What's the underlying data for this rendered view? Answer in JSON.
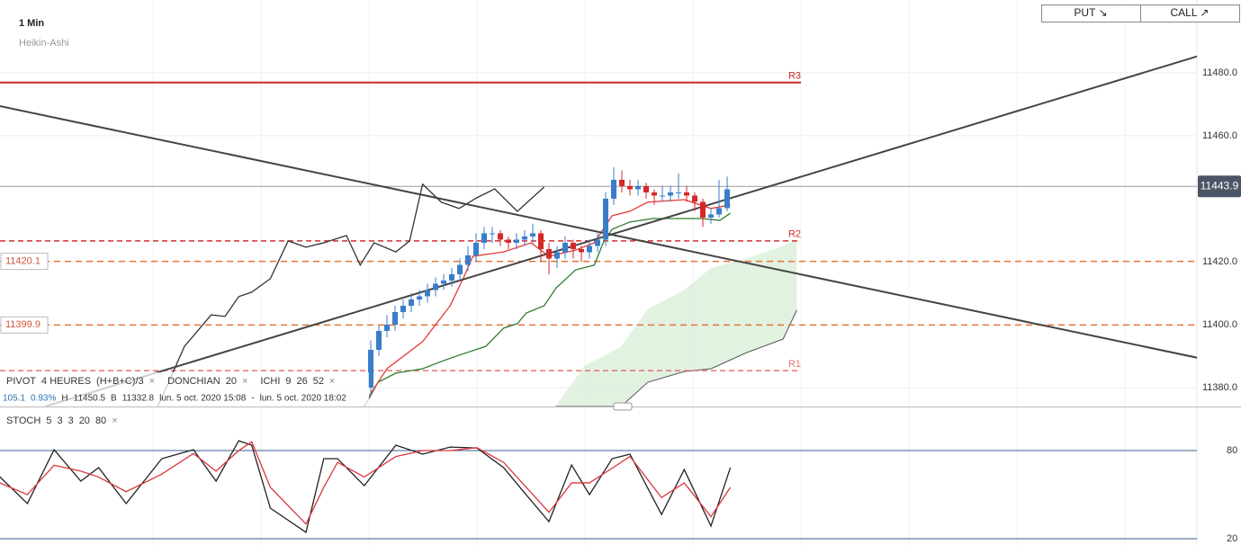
{
  "chart_data": [
    {
      "type": "candlestick",
      "categories": [
        null,
        null,
        null,
        null,
        null,
        null,
        null,
        null,
        null,
        null,
        null,
        null,
        null,
        null,
        null,
        null,
        null,
        null,
        null,
        null,
        null,
        null,
        null,
        null,
        null,
        null,
        null,
        null,
        null,
        null,
        null,
        null,
        null,
        null,
        null,
        null,
        null,
        null,
        null,
        null,
        null,
        null,
        null,
        null,
        null
      ],
      "open": [
        11380,
        11392,
        11398,
        11400,
        11404,
        11406,
        11408,
        11409,
        11411,
        11413,
        11414,
        11416,
        11419,
        11422,
        11426,
        11429,
        11429,
        11427,
        11426,
        11427,
        11428,
        11429,
        11424,
        11421,
        11423,
        11426,
        11424,
        11423,
        11425,
        11427,
        11440,
        11446,
        11444,
        11443,
        11444,
        11442,
        11441,
        11441,
        11442,
        11442,
        11441,
        11439,
        11434,
        11435,
        11437
      ],
      "high": [
        11395,
        11400,
        11403,
        11406,
        11408,
        11410,
        11411,
        11413,
        11415,
        11416,
        11418,
        11421,
        11425,
        11429,
        11431,
        11431,
        11430,
        11428,
        11429,
        11430,
        11432,
        11430,
        11426,
        11425,
        11428,
        11427,
        11425,
        11427,
        11429,
        11442,
        11450,
        11449,
        11446,
        11446,
        11445,
        11443,
        11444,
        11444,
        11448,
        11444,
        11442,
        11440,
        11437,
        11446,
        11447
      ],
      "low": [
        11377,
        11390,
        11396,
        11398,
        11402,
        11404,
        11406,
        11407,
        11409,
        11411,
        11412,
        11414,
        11417,
        11420,
        11424,
        11426,
        11425,
        11424,
        11424,
        11425,
        11426,
        11420,
        11416,
        11418,
        11421,
        11421,
        11420,
        11421,
        11423,
        11425,
        11438,
        11442,
        11441,
        11441,
        11440,
        11438,
        11439,
        11439,
        11440,
        11439,
        11436,
        11431,
        11432,
        11434,
        11436
      ],
      "close": [
        11392,
        11398,
        11400,
        11404,
        11406,
        11408,
        11409,
        11411,
        11413,
        11414,
        11416,
        11419,
        11422,
        11426,
        11429,
        11429,
        11427,
        11426,
        11427,
        11428,
        11429,
        11424,
        11421,
        11423,
        11426,
        11424,
        11423,
        11425,
        11427,
        11440,
        11446,
        11444,
        11443,
        11444,
        11442,
        11441,
        11441,
        11442,
        11442,
        11441,
        11439,
        11434,
        11435,
        11437,
        11443
      ],
      "up_color": "#3a7dc9",
      "down_color": "#d62728",
      "ylim": [
        11374.0,
        11503.1
      ],
      "yticks": [
        {
          "value": 11480,
          "label": "11480.0"
        },
        {
          "value": 11460,
          "label": "11460.0"
        },
        {
          "value": 11420,
          "label": "11420.0"
        },
        {
          "value": 11400,
          "label": "11400.0"
        },
        {
          "value": 11380,
          "label": "11380.0"
        }
      ],
      "grid": true,
      "last_price": 11443.9,
      "series": [
        {
          "color": "#333333",
          "x": [
            -26.3,
            -23,
            -19.7,
            -18,
            -16.3,
            -14.7,
            -12.4,
            -10.2,
            -8,
            -5.8,
            -3,
            -1.3,
            0.4,
            3.1,
            4.8,
            6.4,
            8.7,
            10.9,
            13.1,
            15.3,
            18.1,
            21.4
          ],
          "values": [
            11374,
            11393.1,
            11403.1,
            11402.6,
            11408.9,
            11410.3,
            11414.6,
            11426.6,
            11424.6,
            11426,
            11428.3,
            11418.9,
            11426,
            11423.1,
            11426.6,
            11444.6,
            11438.9,
            11436.9,
            11440.3,
            11443.1,
            11436,
            11443.7
          ]
        },
        {
          "color": "#2e7d32",
          "x": [
            -0.8,
            0.9,
            3.1,
            6.4,
            8.7,
            10.9,
            14.2,
            16.4,
            18.1,
            19.2,
            21.4,
            22.9,
            25.3,
            27.6,
            28.7,
            29.8,
            32,
            34.8,
            40.9,
            43.1,
            44.4
          ],
          "values": [
            11374,
            11381.7,
            11384.6,
            11386,
            11388.3,
            11390.3,
            11393.1,
            11398.9,
            11400.3,
            11403.7,
            11406,
            11411.7,
            11417.4,
            11418.9,
            11426,
            11430.3,
            11432.6,
            11433.7,
            11433.7,
            11433.1,
            11435.4
          ]
        },
        {
          "color": "#e53935",
          "x": [
            -0.2,
            2,
            6.4,
            9.8,
            11.4,
            12.6,
            16.4,
            19.8,
            22,
            25.3,
            27.6,
            29.8,
            32,
            34.2,
            38.7,
            42,
            44.4
          ],
          "values": [
            11377.4,
            11386,
            11394.6,
            11406,
            11414.6,
            11421.7,
            11423.1,
            11426,
            11421.7,
            11423.7,
            11426,
            11434.6,
            11436,
            11438.9,
            11439.7,
            11436.9,
            11438
          ]
        }
      ],
      "cloud": {
        "color": "#d9efd9",
        "line_color": "#555555",
        "x": [
          22.8,
          26.4,
          30.9,
          34.2,
          38.7,
          42,
          46.4,
          50.9,
          52.6
        ],
        "upper": [
          11374,
          11387,
          11393,
          11405,
          11411,
          11418,
          11421,
          11425,
          11427
        ],
        "lower": [
          11374,
          11374,
          11374,
          11381.7,
          11385.1,
          11386,
          11391.1,
          11395.4,
          11404.6
        ]
      },
      "trendlines": [
        {
          "color": "#444444",
          "start": [
            -45.8,
            11469.4
          ],
          "end": [
            107.4,
            11386.6
          ]
        },
        {
          "color": "#444444",
          "start": [
            -40.2,
            11374
          ],
          "end": [
            107.4,
            11489.4
          ]
        }
      ],
      "levels": [
        {
          "label": "R3",
          "value": 11476.9,
          "color": "#c62828",
          "dashed": false
        },
        {
          "label": "R2",
          "value": 11426.6,
          "color": "#d32f2f",
          "dashed": true
        },
        {
          "label": "R1",
          "value": 11385.4,
          "color": "#e57373",
          "dashed": true
        }
      ],
      "price_lines": [
        {
          "value": 11420.1,
          "color": "#e8733a"
        },
        {
          "value": 11399.9,
          "color": "#e8733a"
        }
      ]
    },
    {
      "type": "line",
      "x": [
        -45.8,
        -42.4,
        -39.1,
        -35.8,
        -33.6,
        -30.2,
        -25.8,
        -21.9,
        -19.1,
        -16.3,
        -14.7,
        -12.4,
        -8,
        -5.8,
        -4.1,
        -0.8,
        3.1,
        6.4,
        9.8,
        13.1,
        16.4,
        18.7,
        22,
        24.8,
        27,
        29.8,
        32,
        35.9,
        38.7,
        42,
        44.4
      ],
      "series": [
        {
          "color": "#222222",
          "values": [
            62.2,
            43.9,
            80.6,
            59.2,
            68.4,
            43.9,
            74.5,
            80.6,
            59.2,
            86.7,
            83.7,
            40.8,
            24.3,
            74.5,
            74.5,
            56.1,
            83.7,
            77.6,
            82.4,
            81.8,
            68.4,
            53.1,
            31.6,
            70.2,
            50,
            74.5,
            77.6,
            36.5,
            67.1,
            28.6,
            68.4
          ]
        },
        {
          "color": "#d9363e",
          "values": [
            58,
            50,
            70,
            66,
            62,
            52,
            64,
            78,
            66,
            80,
            86,
            55,
            30,
            55,
            72,
            62,
            76,
            80,
            80,
            82,
            72,
            58,
            38,
            58,
            58,
            68,
            76,
            48,
            58,
            35,
            55
          ]
        }
      ],
      "ylim": [
        15.7,
        108.2
      ],
      "yticks": [
        80,
        20
      ]
    }
  ],
  "ui": {
    "timeframe": "1 Min",
    "chart_style": "Heikin-Ashi",
    "put": "PUT ↘",
    "call": "CALL ↗",
    "indicators": [
      "PIVOT",
      "4 HEURES",
      "(H+B+C)/3",
      "×",
      "DONCHIAN",
      "20",
      "×",
      "ICHI",
      "9",
      "26",
      "52",
      "×"
    ],
    "info": [
      "105.1",
      "0.93%",
      "H",
      "11450.5",
      "B",
      "11332.8",
      "lun. 5 oct. 2020 15:08",
      "-",
      "lun. 5 oct. 2020 18:02"
    ],
    "stoch": [
      "STOCH",
      "5",
      "3",
      "3",
      "20",
      "80",
      "×"
    ]
  }
}
